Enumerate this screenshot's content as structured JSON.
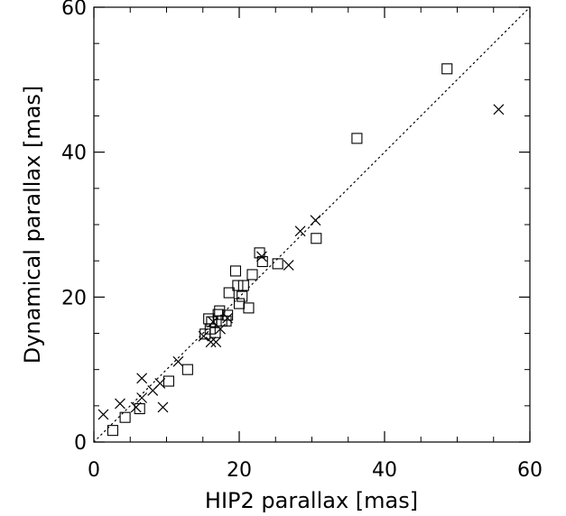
{
  "chart_data": {
    "type": "scatter",
    "title": "",
    "xlabel": "HIP2 parallax [mas]",
    "ylabel": "Dynamical parallax [mas]",
    "xlim": [
      0,
      60
    ],
    "ylim": [
      0,
      60
    ],
    "xticks": [
      0,
      20,
      40,
      60
    ],
    "yticks": [
      0,
      20,
      40,
      60
    ],
    "xtick_labels": [
      "0",
      "20",
      "40",
      "60"
    ],
    "ytick_labels": [
      "0",
      "20",
      "40",
      "60"
    ],
    "grid": false,
    "reference_line": {
      "style": "dotted",
      "x": [
        0,
        60
      ],
      "y": [
        0,
        60
      ]
    },
    "series": [
      {
        "marker": "square",
        "points": [
          [
            2.6,
            1.6
          ],
          [
            4.3,
            3.4
          ],
          [
            6.3,
            4.6
          ],
          [
            10.3,
            8.4
          ],
          [
            12.9,
            10.0
          ],
          [
            15.3,
            14.9
          ],
          [
            15.8,
            17.0
          ],
          [
            16.0,
            15.6
          ],
          [
            16.2,
            16.6
          ],
          [
            16.7,
            15.1
          ],
          [
            17.1,
            17.6
          ],
          [
            17.3,
            18.1
          ],
          [
            17.6,
            16.7
          ],
          [
            18.2,
            16.7
          ],
          [
            18.4,
            17.5
          ],
          [
            18.6,
            20.6
          ],
          [
            19.5,
            23.6
          ],
          [
            19.8,
            21.6
          ],
          [
            20.0,
            19.1
          ],
          [
            20.4,
            20.1
          ],
          [
            20.6,
            21.6
          ],
          [
            21.3,
            18.5
          ],
          [
            21.8,
            23.1
          ],
          [
            22.8,
            26.1
          ],
          [
            23.2,
            24.9
          ],
          [
            25.3,
            24.6
          ],
          [
            30.6,
            28.1
          ],
          [
            36.2,
            41.9
          ],
          [
            48.6,
            51.5
          ]
        ]
      },
      {
        "marker": "cross",
        "points": [
          [
            1.3,
            3.8
          ],
          [
            3.6,
            5.3
          ],
          [
            5.8,
            4.8
          ],
          [
            6.6,
            6.1
          ],
          [
            6.6,
            8.8
          ],
          [
            8.1,
            7.1
          ],
          [
            9.1,
            8.1
          ],
          [
            9.5,
            4.8
          ],
          [
            11.6,
            11.1
          ],
          [
            15.1,
            14.6
          ],
          [
            16.1,
            13.8
          ],
          [
            16.4,
            16.6
          ],
          [
            16.8,
            13.8
          ],
          [
            17.4,
            15.6
          ],
          [
            18.4,
            17.1
          ],
          [
            23.1,
            25.6
          ],
          [
            26.8,
            24.4
          ],
          [
            28.4,
            29.1
          ],
          [
            30.5,
            30.6
          ],
          [
            55.7,
            45.9
          ]
        ]
      }
    ]
  }
}
